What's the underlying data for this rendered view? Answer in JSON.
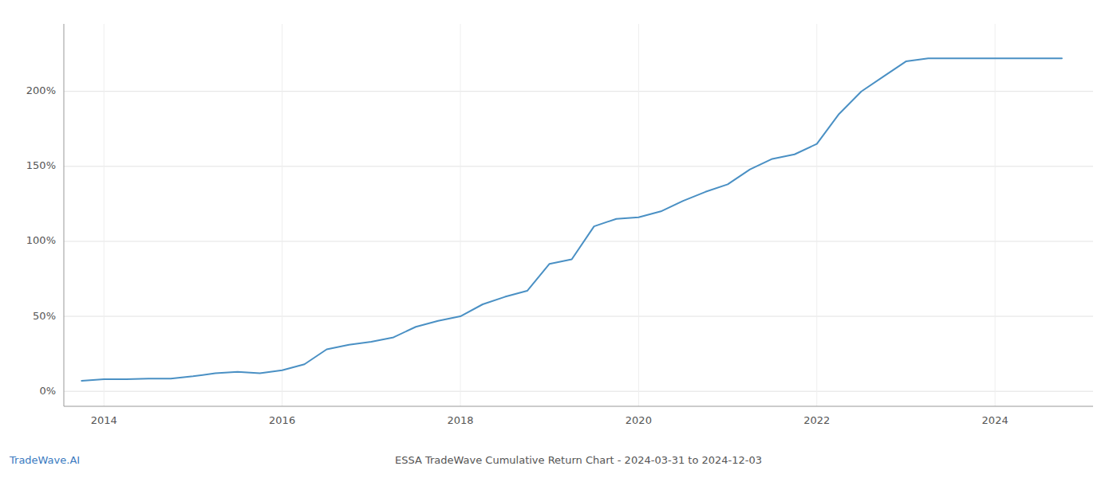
{
  "chart_data": {
    "type": "line",
    "title": "ESSA TradeWave Cumulative Return Chart - 2024-03-31 to 2024-12-03",
    "annotations": [
      "TradeWave.AI"
    ],
    "color": "#4a90c4",
    "grid": true,
    "x": [
      2013.75,
      2014.0,
      2014.25,
      2014.5,
      2014.75,
      2015.0,
      2015.25,
      2015.5,
      2015.75,
      2016.0,
      2016.25,
      2016.5,
      2016.75,
      2017.0,
      2017.25,
      2017.5,
      2017.75,
      2018.0,
      2018.25,
      2018.5,
      2018.75,
      2019.0,
      2019.25,
      2019.5,
      2019.75,
      2020.0,
      2020.25,
      2020.5,
      2020.75,
      2021.0,
      2021.25,
      2021.5,
      2021.75,
      2022.0,
      2022.25,
      2022.5,
      2022.75,
      2023.0,
      2023.25,
      2023.5,
      2023.75,
      2024.0,
      2024.25,
      2024.5,
      2024.75
    ],
    "values": [
      7,
      8,
      8,
      8.5,
      8.5,
      10,
      12,
      13,
      12,
      14,
      18,
      28,
      31,
      33,
      36,
      43,
      47,
      50,
      58,
      63,
      67,
      85,
      88,
      110,
      115,
      116,
      120,
      127,
      133,
      138,
      148,
      155,
      158,
      165,
      185,
      200,
      210,
      220,
      222,
      222,
      222,
      222,
      222,
      222,
      222
    ],
    "xlim": [
      2013.55,
      2025.1
    ],
    "xticks": [
      2014,
      2016,
      2018,
      2020,
      2022,
      2024
    ],
    "ylim": [
      -10,
      245
    ],
    "yticks": [
      {
        "value": 0,
        "label": "0%"
      },
      {
        "value": 50,
        "label": "50%"
      },
      {
        "value": 100,
        "label": "100%"
      },
      {
        "value": 150,
        "label": "150%"
      },
      {
        "value": 200,
        "label": "200%"
      }
    ]
  }
}
